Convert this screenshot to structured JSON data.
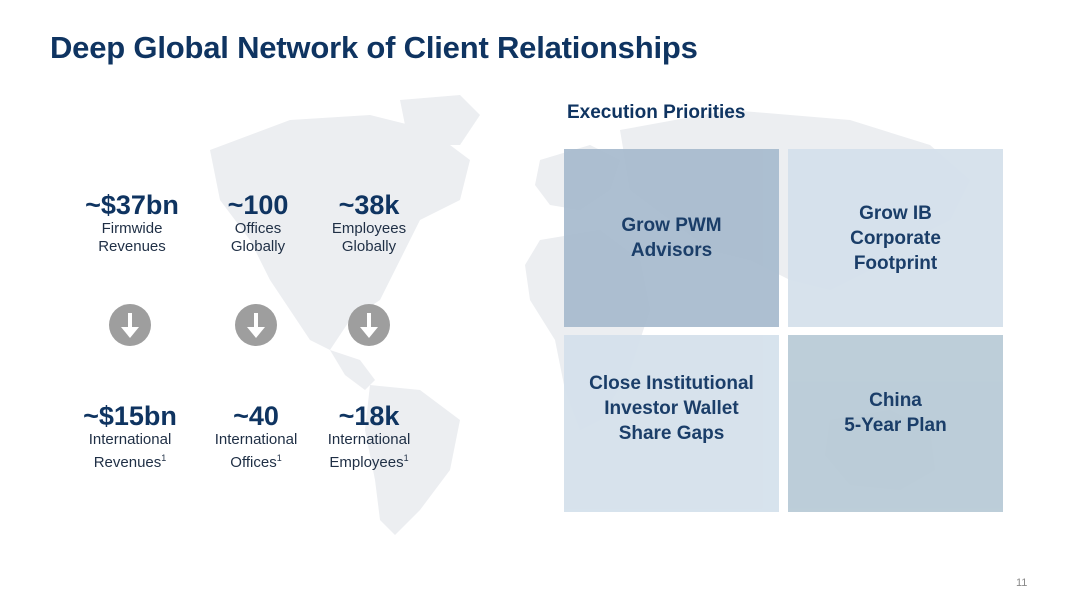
{
  "title": "Deep Global Network of Client Relationships",
  "stats_top": [
    {
      "value": "~$37bn",
      "label1": "Firmwide",
      "label2": "Revenues"
    },
    {
      "value": "~100",
      "label1": "Offices",
      "label2": "Globally"
    },
    {
      "value": "~38k",
      "label1": "Employees",
      "label2": "Globally"
    }
  ],
  "stats_bottom": [
    {
      "value": "~$15bn",
      "label1": "International",
      "label2": "Revenues",
      "footnote": "1"
    },
    {
      "value": "~40",
      "label1": "International",
      "label2": "Offices",
      "footnote": "1"
    },
    {
      "value": "~18k",
      "label1": "International",
      "label2": "Employees",
      "footnote": "1"
    }
  ],
  "icons": {
    "arrow": "down-arrow-circle-icon",
    "map": "world-map-icon"
  },
  "execution_priorities": {
    "title": "Execution Priorities",
    "boxes": [
      {
        "line1": "Grow PWM",
        "line2": "Advisors",
        "line3": ""
      },
      {
        "line1": "Grow IB",
        "line2": "Corporate",
        "line3": "Footprint"
      },
      {
        "line1": "Close Institutional",
        "line2": "Investor Wallet",
        "line3": "Share Gaps"
      },
      {
        "line1": "China",
        "line2": "5-Year Plan",
        "line3": ""
      }
    ]
  },
  "colors": {
    "title": "#0f3461",
    "box_dark": "#a9bccf",
    "box_light": "#d5e1ec",
    "box_mid": "#b9cbd7",
    "arrow": "#9e9e9e"
  },
  "page_number": "11"
}
